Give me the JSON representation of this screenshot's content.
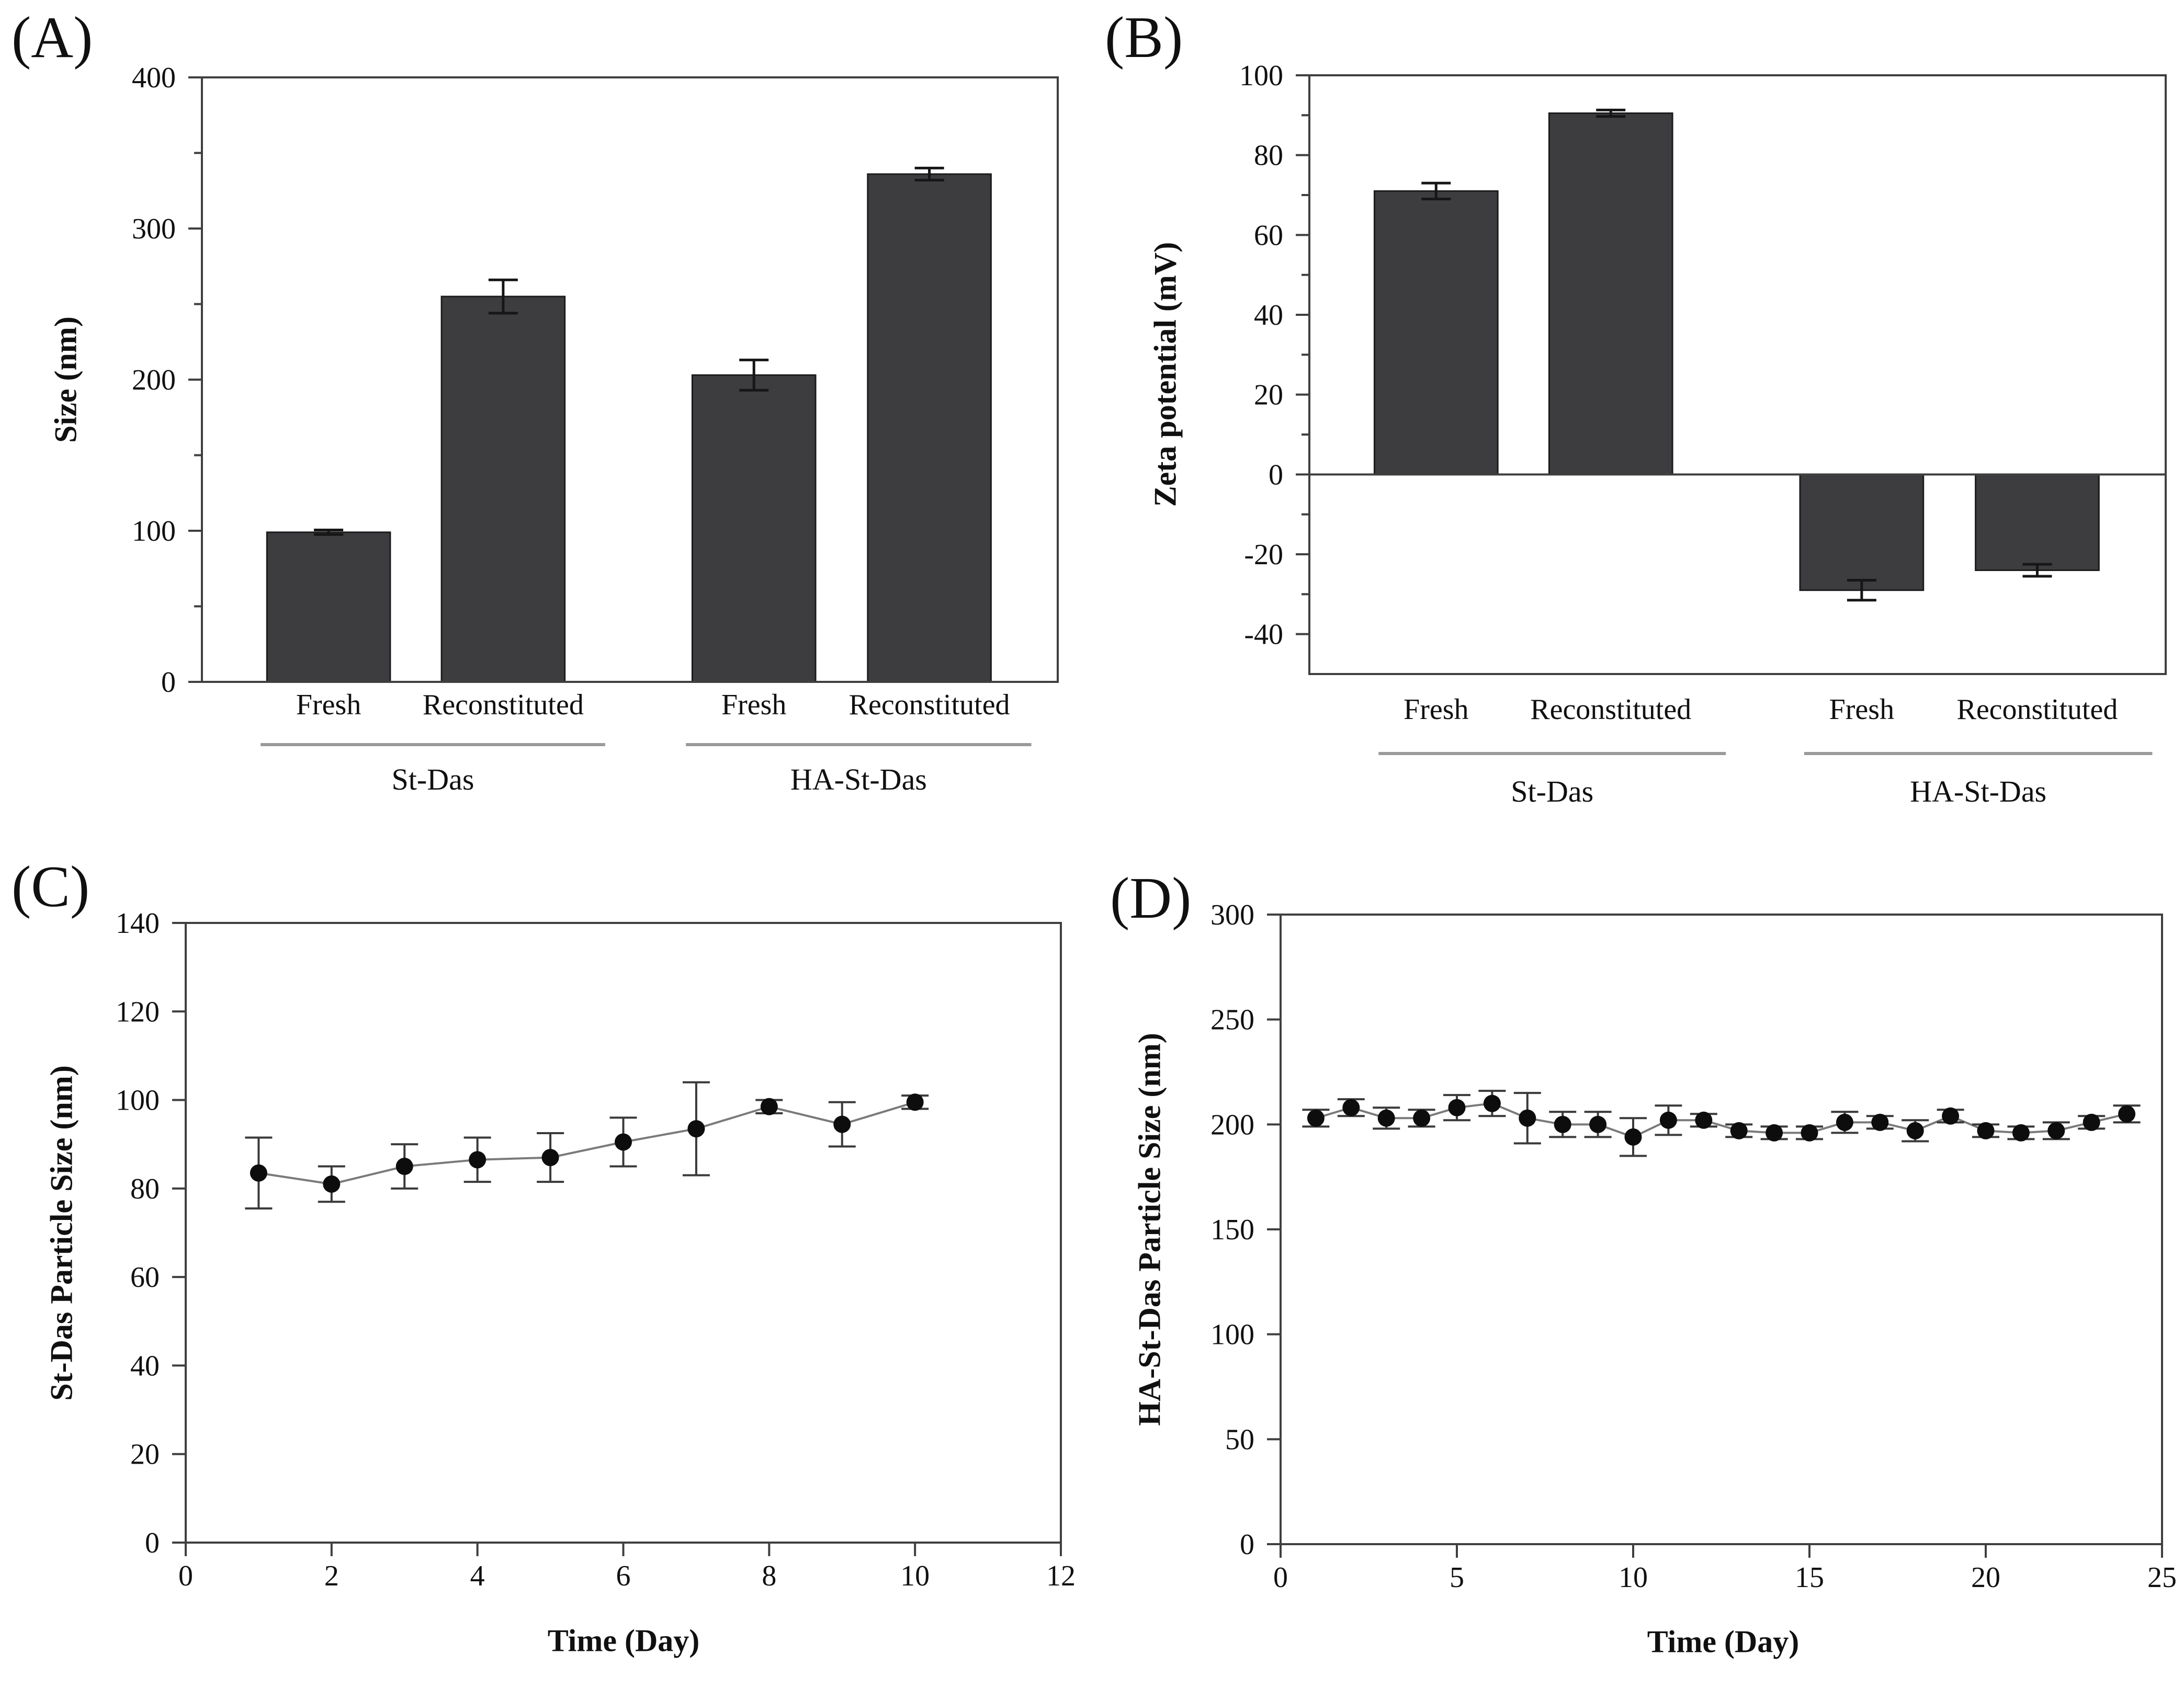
{
  "chart_data": [
    {
      "panel": "(A)",
      "type": "bar",
      "ylabel": "Size (nm)",
      "ylim": [
        0,
        400
      ],
      "yticks": [
        0,
        100,
        200,
        300,
        400
      ],
      "y_minor_step": 50,
      "categories": [
        "Fresh",
        "Reconstituted",
        "Fresh",
        "Reconstituted"
      ],
      "groups": [
        {
          "label": "St-Das",
          "from": 0,
          "to": 1
        },
        {
          "label": "HA-St-Das",
          "from": 2,
          "to": 3
        }
      ],
      "values": [
        99,
        255,
        203,
        336
      ],
      "errors": [
        1.5,
        11,
        10,
        4
      ],
      "bar_color": "#3d3d3f",
      "grid": false,
      "legend": "none"
    },
    {
      "panel": "(B)",
      "type": "bar",
      "ylabel": "Zeta potential (mV)",
      "ylim": [
        -50,
        100
      ],
      "yticks": [
        -40,
        -20,
        0,
        20,
        40,
        60,
        80,
        100
      ],
      "y_minor_step": 10,
      "zero_line": true,
      "categories": [
        "Fresh",
        "Reconstituted",
        "Fresh",
        "Reconstituted"
      ],
      "groups": [
        {
          "label": "St-Das",
          "from": 0,
          "to": 1
        },
        {
          "label": "HA-St-Das",
          "from": 2,
          "to": 3
        }
      ],
      "values": [
        71,
        90.5,
        -29,
        -24
      ],
      "errors": [
        2,
        0.8,
        2.5,
        1.5
      ],
      "bar_color": "#3d3d3f",
      "grid": false,
      "legend": "none"
    },
    {
      "panel": "(C)",
      "type": "line",
      "xlabel": "Time (Day)",
      "ylabel": "St-Das Particle Size (nm)",
      "xlim": [
        0,
        12
      ],
      "xticks": [
        0,
        2,
        4,
        6,
        8,
        10,
        12
      ],
      "ylim": [
        0,
        140
      ],
      "yticks": [
        0,
        20,
        40,
        60,
        80,
        100,
        120,
        140
      ],
      "x": [
        1,
        2,
        3,
        4,
        5,
        6,
        7,
        8,
        9,
        10
      ],
      "y": [
        83.5,
        81,
        85,
        86.5,
        87,
        90.5,
        93.5,
        98.5,
        94.5,
        99.5
      ],
      "errors": [
        8,
        4,
        5,
        5,
        5.5,
        5.5,
        10.5,
        1.5,
        5,
        1.5
      ],
      "line_color": "#7a7a7a",
      "marker_color": "#0d0d0d",
      "grid": false,
      "legend": "none"
    },
    {
      "panel": "(D)",
      "type": "line",
      "xlabel": "Time (Day)",
      "ylabel": "HA-St-Das Particle Size (nm)",
      "xlim": [
        0,
        25
      ],
      "xticks": [
        0,
        5,
        10,
        15,
        20,
        25
      ],
      "ylim": [
        0,
        300
      ],
      "yticks": [
        0,
        50,
        100,
        150,
        200,
        250,
        300
      ],
      "x": [
        1,
        2,
        3,
        4,
        5,
        6,
        7,
        8,
        9,
        10,
        11,
        12,
        13,
        14,
        15,
        16,
        17,
        18,
        19,
        20,
        21,
        22,
        23,
        24
      ],
      "y": [
        203,
        208,
        203,
        203,
        208,
        210,
        203,
        200,
        200,
        194,
        202,
        202,
        197,
        196,
        196,
        201,
        201,
        197,
        204,
        197,
        196,
        197,
        201,
        205
      ],
      "errors": [
        4,
        4,
        5,
        4,
        6,
        6,
        12,
        6,
        6,
        9,
        7,
        3,
        3,
        3,
        3,
        5,
        3,
        5,
        3,
        3,
        3,
        4,
        3,
        4
      ],
      "line_color": "#7a7a7a",
      "marker_color": "#0d0d0d",
      "grid": false,
      "legend": "none"
    }
  ]
}
